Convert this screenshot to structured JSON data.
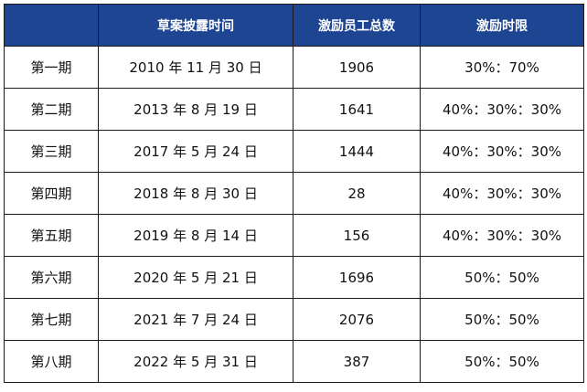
{
  "table": {
    "header_color": "#1e4592",
    "headers": [
      "",
      "草案披露时间",
      "激励员工总数",
      "激励时限"
    ],
    "rows": [
      {
        "phase": "第一期",
        "date": "2010 年 11 月 30 日",
        "employees": "1906",
        "ratio": "30%：70%"
      },
      {
        "phase": "第二期",
        "date": "2013 年 8 月 19 日",
        "employees": "1641",
        "ratio": "40%：30%：30%"
      },
      {
        "phase": "第三期",
        "date": "2017 年 5 月 24 日",
        "employees": "1444",
        "ratio": "40%：30%：30%"
      },
      {
        "phase": "第四期",
        "date": "2018 年 8 月 30 日",
        "employees": "28",
        "ratio": "40%：30%：30%"
      },
      {
        "phase": "第五期",
        "date": "2019 年 8 月 14 日",
        "employees": "156",
        "ratio": "40%：30%：30%"
      },
      {
        "phase": "第六期",
        "date": "2020 年 5 月 21 日",
        "employees": "1696",
        "ratio": "50%：50%"
      },
      {
        "phase": "第七期",
        "date": "2021 年 7 月 24 日",
        "employees": "2076",
        "ratio": "50%：50%"
      },
      {
        "phase": "第八期",
        "date": "2022 年 5 月 31 日",
        "employees": "387",
        "ratio": "50%：50%"
      }
    ]
  }
}
